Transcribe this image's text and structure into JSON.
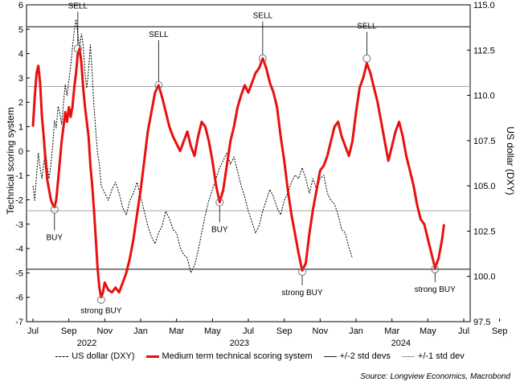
{
  "chart_data": {
    "type": "line",
    "xlabel": "",
    "ylabel_left": "Technical scoring system",
    "ylabel_right": "US dollar (DXY)",
    "ylim_left": [
      -7,
      6
    ],
    "ylim_right": [
      97.5,
      115.0
    ],
    "yticks_left": [
      "-7",
      "-6",
      "-5",
      "-4",
      "-3",
      "-2",
      "-1",
      "0",
      "1",
      "2",
      "3",
      "4",
      "5",
      "6"
    ],
    "yticks_right": [
      "97.5",
      "100.0",
      "102.5",
      "105.0",
      "107.5",
      "110.0",
      "112.5",
      "115.0"
    ],
    "x_month_labels": [
      "Jul",
      "Sep",
      "Nov",
      "Jan",
      "Mar",
      "May",
      "Jul",
      "Sep",
      "Nov",
      "Jan",
      "Mar",
      "May",
      "Jul",
      "Sep"
    ],
    "x_year_labels": [
      "2022",
      "2023",
      "2024"
    ],
    "reference_lines": [
      {
        "name": "+/-2 std devs",
        "values": [
          5.1,
          -4.85
        ]
      },
      {
        "name": "+/-1 std dev",
        "values": [
          2.65,
          -2.45
        ]
      }
    ],
    "series": [
      {
        "name": "US dollar (DXY)",
        "axis": "right",
        "style": "dotted",
        "color": "#000000",
        "points": [
          [
            0.0,
            105.0
          ],
          [
            0.1,
            104.2
          ],
          [
            0.2,
            105.6
          ],
          [
            0.3,
            106.8
          ],
          [
            0.4,
            106.0
          ],
          [
            0.5,
            105.4
          ],
          [
            0.6,
            106.2
          ],
          [
            0.7,
            107.0
          ],
          [
            0.8,
            106.0
          ],
          [
            0.9,
            105.4
          ],
          [
            1.0,
            106.2
          ],
          [
            1.1,
            107.2
          ],
          [
            1.2,
            108.6
          ],
          [
            1.3,
            108.2
          ],
          [
            1.4,
            109.4
          ],
          [
            1.5,
            109.0
          ],
          [
            1.6,
            108.4
          ],
          [
            1.7,
            109.6
          ],
          [
            1.8,
            110.6
          ],
          [
            1.9,
            110.0
          ],
          [
            2.0,
            110.8
          ],
          [
            2.1,
            111.6
          ],
          [
            2.2,
            112.6
          ],
          [
            2.3,
            113.6
          ],
          [
            2.4,
            114.2
          ],
          [
            2.5,
            113.4
          ],
          [
            2.6,
            112.6
          ],
          [
            2.7,
            113.4
          ],
          [
            2.8,
            112.8
          ],
          [
            2.9,
            111.2
          ],
          [
            3.0,
            110.4
          ],
          [
            3.1,
            111.4
          ],
          [
            3.2,
            112.8
          ],
          [
            3.3,
            111.2
          ],
          [
            3.4,
            109.4
          ],
          [
            3.5,
            108.0
          ],
          [
            3.6,
            106.8
          ],
          [
            3.7,
            106.2
          ],
          [
            3.8,
            105.0
          ],
          [
            4.0,
            104.6
          ],
          [
            4.2,
            104.2
          ],
          [
            4.4,
            104.8
          ],
          [
            4.6,
            105.2
          ],
          [
            4.8,
            104.6
          ],
          [
            5.0,
            103.8
          ],
          [
            5.2,
            103.4
          ],
          [
            5.4,
            104.2
          ],
          [
            5.6,
            104.6
          ],
          [
            5.8,
            105.2
          ],
          [
            6.0,
            104.4
          ],
          [
            6.2,
            103.6
          ],
          [
            6.4,
            102.8
          ],
          [
            6.6,
            102.2
          ],
          [
            6.8,
            101.8
          ],
          [
            7.0,
            102.4
          ],
          [
            7.2,
            102.8
          ],
          [
            7.4,
            103.6
          ],
          [
            7.6,
            103.2
          ],
          [
            7.8,
            102.6
          ],
          [
            8.0,
            102.4
          ],
          [
            8.2,
            101.6
          ],
          [
            8.4,
            101.2
          ],
          [
            8.6,
            101.0
          ],
          [
            8.8,
            100.2
          ],
          [
            9.0,
            100.6
          ],
          [
            9.2,
            101.4
          ],
          [
            9.4,
            102.4
          ],
          [
            9.6,
            103.4
          ],
          [
            9.8,
            104.2
          ],
          [
            10.0,
            104.8
          ],
          [
            10.2,
            105.4
          ],
          [
            10.4,
            106.0
          ],
          [
            10.6,
            106.4
          ],
          [
            10.8,
            106.8
          ],
          [
            11.0,
            106.2
          ],
          [
            11.2,
            106.6
          ],
          [
            11.4,
            105.8
          ],
          [
            11.6,
            105.0
          ],
          [
            11.8,
            104.4
          ],
          [
            12.0,
            103.6
          ],
          [
            12.2,
            103.0
          ],
          [
            12.4,
            102.4
          ],
          [
            12.6,
            102.8
          ],
          [
            12.8,
            103.6
          ],
          [
            13.0,
            104.2
          ],
          [
            13.2,
            104.8
          ],
          [
            13.4,
            104.4
          ],
          [
            13.6,
            103.8
          ],
          [
            13.8,
            103.4
          ],
          [
            14.0,
            104.2
          ],
          [
            14.2,
            104.6
          ],
          [
            14.4,
            105.2
          ],
          [
            14.6,
            105.6
          ],
          [
            14.8,
            105.4
          ],
          [
            15.0,
            106.0
          ],
          [
            15.2,
            105.4
          ],
          [
            15.4,
            104.6
          ],
          [
            15.6,
            105.4
          ],
          [
            15.8,
            104.8
          ],
          [
            16.0,
            105.4
          ],
          [
            16.2,
            105.6
          ],
          [
            16.4,
            104.6
          ],
          [
            16.6,
            104.2
          ],
          [
            16.8,
            104.0
          ],
          [
            17.0,
            103.4
          ],
          [
            17.2,
            102.6
          ],
          [
            17.4,
            102.4
          ],
          [
            17.6,
            101.6
          ],
          [
            17.8,
            101.0
          ]
        ]
      },
      {
        "name": "Medium term technical scoring system",
        "axis": "left",
        "style": "solid",
        "color": "#e8100f",
        "points": [
          [
            0.0,
            1.0
          ],
          [
            0.1,
            2.2
          ],
          [
            0.2,
            3.2
          ],
          [
            0.3,
            3.5
          ],
          [
            0.4,
            2.8
          ],
          [
            0.5,
            1.4
          ],
          [
            0.6,
            0.6
          ],
          [
            0.7,
            -0.4
          ],
          [
            0.8,
            -1.2
          ],
          [
            0.9,
            -1.6
          ],
          [
            1.0,
            -2.0
          ],
          [
            1.1,
            -2.2
          ],
          [
            1.2,
            -2.3
          ],
          [
            1.3,
            -2.0
          ],
          [
            1.4,
            -1.2
          ],
          [
            1.5,
            -0.4
          ],
          [
            1.6,
            0.4
          ],
          [
            1.7,
            1.0
          ],
          [
            1.8,
            1.6
          ],
          [
            1.9,
            1.2
          ],
          [
            2.0,
            1.8
          ],
          [
            2.1,
            1.4
          ],
          [
            2.2,
            1.8
          ],
          [
            2.3,
            2.6
          ],
          [
            2.4,
            3.2
          ],
          [
            2.5,
            4.0
          ],
          [
            2.6,
            4.2
          ],
          [
            2.7,
            3.6
          ],
          [
            2.8,
            2.6
          ],
          [
            2.9,
            1.8
          ],
          [
            3.0,
            1.2
          ],
          [
            3.1,
            0.6
          ],
          [
            3.2,
            -0.6
          ],
          [
            3.3,
            -1.4
          ],
          [
            3.4,
            -2.4
          ],
          [
            3.5,
            -3.6
          ],
          [
            3.6,
            -4.8
          ],
          [
            3.7,
            -5.6
          ],
          [
            3.8,
            -6.0
          ],
          [
            3.9,
            -5.8
          ],
          [
            4.0,
            -5.4
          ],
          [
            4.2,
            -5.7
          ],
          [
            4.4,
            -5.8
          ],
          [
            4.6,
            -5.6
          ],
          [
            4.8,
            -5.8
          ],
          [
            5.0,
            -5.4
          ],
          [
            5.2,
            -5.0
          ],
          [
            5.4,
            -4.4
          ],
          [
            5.6,
            -3.6
          ],
          [
            5.8,
            -2.6
          ],
          [
            6.0,
            -1.6
          ],
          [
            6.2,
            -0.4
          ],
          [
            6.4,
            0.8
          ],
          [
            6.6,
            1.6
          ],
          [
            6.8,
            2.4
          ],
          [
            7.0,
            2.7
          ],
          [
            7.2,
            2.2
          ],
          [
            7.4,
            1.6
          ],
          [
            7.6,
            1.0
          ],
          [
            7.8,
            0.6
          ],
          [
            8.0,
            0.3
          ],
          [
            8.2,
            0.0
          ],
          [
            8.4,
            0.4
          ],
          [
            8.6,
            0.8
          ],
          [
            8.8,
            0.2
          ],
          [
            9.0,
            -0.2
          ],
          [
            9.2,
            0.6
          ],
          [
            9.4,
            1.2
          ],
          [
            9.6,
            1.0
          ],
          [
            9.8,
            0.4
          ],
          [
            10.0,
            -0.4
          ],
          [
            10.2,
            -1.4
          ],
          [
            10.4,
            -2.1
          ],
          [
            10.6,
            -1.6
          ],
          [
            10.8,
            -0.6
          ],
          [
            11.0,
            0.4
          ],
          [
            11.2,
            1.0
          ],
          [
            11.4,
            1.8
          ],
          [
            11.6,
            2.3
          ],
          [
            11.8,
            2.7
          ],
          [
            12.0,
            2.4
          ],
          [
            12.2,
            2.8
          ],
          [
            12.4,
            3.2
          ],
          [
            12.6,
            3.4
          ],
          [
            12.8,
            3.8
          ],
          [
            13.0,
            3.4
          ],
          [
            13.2,
            2.8
          ],
          [
            13.4,
            2.4
          ],
          [
            13.6,
            1.8
          ],
          [
            13.8,
            0.6
          ],
          [
            14.0,
            -0.4
          ],
          [
            14.2,
            -1.6
          ],
          [
            14.4,
            -2.6
          ],
          [
            14.6,
            -3.4
          ],
          [
            14.8,
            -4.2
          ],
          [
            15.0,
            -4.9
          ],
          [
            15.2,
            -4.6
          ],
          [
            15.4,
            -3.4
          ],
          [
            15.6,
            -2.4
          ],
          [
            15.8,
            -1.6
          ],
          [
            16.0,
            -0.8
          ],
          [
            16.2,
            -0.6
          ],
          [
            16.4,
            -0.2
          ],
          [
            16.6,
            0.4
          ],
          [
            16.8,
            1.0
          ],
          [
            17.0,
            1.2
          ],
          [
            17.2,
            0.6
          ],
          [
            17.4,
            0.2
          ],
          [
            17.6,
            -0.2
          ],
          [
            17.8,
            0.4
          ],
          [
            18.0,
            1.6
          ],
          [
            18.2,
            2.6
          ],
          [
            18.4,
            3.0
          ],
          [
            18.6,
            3.6
          ],
          [
            18.8,
            3.2
          ],
          [
            19.0,
            2.6
          ],
          [
            19.2,
            2.0
          ],
          [
            19.4,
            1.2
          ],
          [
            19.6,
            0.4
          ],
          [
            19.8,
            -0.4
          ],
          [
            20.0,
            0.2
          ],
          [
            20.2,
            0.8
          ],
          [
            20.4,
            1.2
          ],
          [
            20.6,
            0.6
          ],
          [
            20.8,
            -0.2
          ],
          [
            21.0,
            -0.8
          ],
          [
            21.2,
            -1.4
          ],
          [
            21.4,
            -2.2
          ],
          [
            21.6,
            -2.8
          ],
          [
            21.8,
            -3.0
          ],
          [
            22.0,
            -3.6
          ],
          [
            22.2,
            -4.2
          ],
          [
            22.4,
            -4.8
          ],
          [
            22.6,
            -4.4
          ],
          [
            22.8,
            -3.6
          ],
          [
            22.9,
            -3.0
          ]
        ]
      }
    ],
    "annotations": [
      {
        "label": "SELL",
        "x": 2.5,
        "y": 4.2,
        "text_dy": -50
      },
      {
        "label": "SELL",
        "x": 7.0,
        "y": 2.7,
        "text_dy": -60
      },
      {
        "label": "SELL",
        "x": 12.8,
        "y": 3.8,
        "text_dy": -50
      },
      {
        "label": "SELL",
        "x": 18.6,
        "y": 3.8,
        "text_dy": -37
      },
      {
        "label": "BUY",
        "x": 1.2,
        "y": -2.4,
        "text_dy": 38
      },
      {
        "label": "BUY",
        "x": 10.4,
        "y": -2.1,
        "text_dy": 37
      },
      {
        "label": "strong BUY",
        "x": 3.8,
        "y": -6.1,
        "text_dy": 17
      },
      {
        "label": "strong BUY",
        "x": 15.0,
        "y": -4.95,
        "text_dy": 29
      },
      {
        "label": "strong BUY",
        "x": 22.4,
        "y": -4.85,
        "text_dy": 28
      }
    ],
    "legend_placement": "bottom",
    "grid": false,
    "source": "Source: Longview Economics, Macrobond"
  }
}
